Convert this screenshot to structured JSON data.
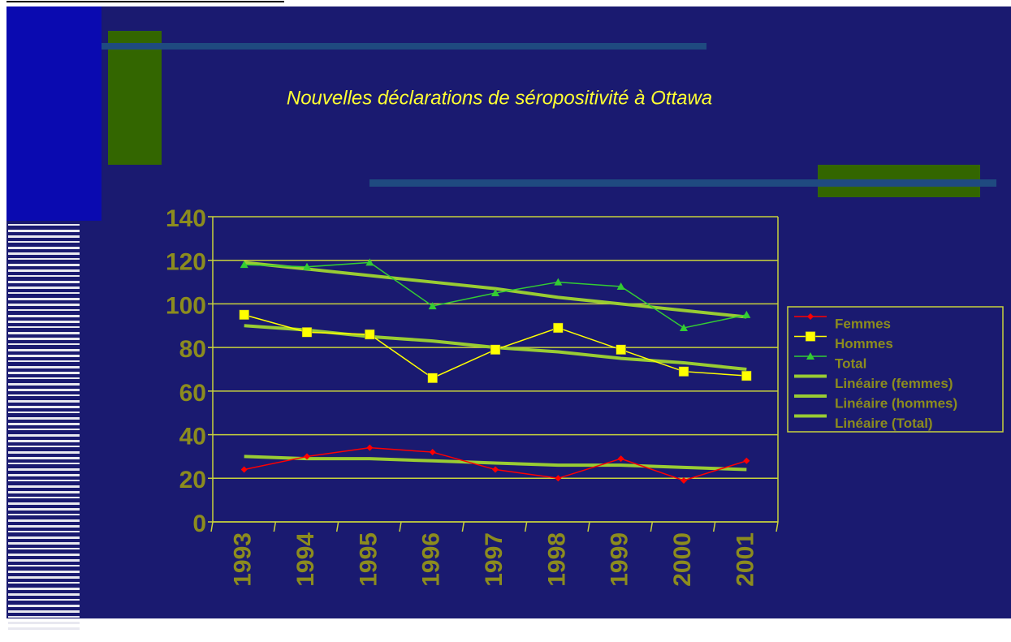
{
  "chart_data": {
    "type": "line",
    "title": "Nouvelles déclarations de séropositivité à Ottawa",
    "categories": [
      "1993",
      "1994",
      "1995",
      "1996",
      "1997",
      "1998",
      "1999",
      "2000",
      "2001"
    ],
    "series": [
      {
        "name": "Femmes",
        "color": "#ff0000",
        "marker": "diamond",
        "values": [
          24,
          30,
          34,
          32,
          24,
          20,
          29,
          19,
          28
        ]
      },
      {
        "name": "Hommes",
        "color": "#ffff00",
        "marker": "square",
        "values": [
          95,
          87,
          86,
          66,
          79,
          89,
          79,
          69,
          67
        ]
      },
      {
        "name": "Total",
        "color": "#33cc33",
        "marker": "triangle",
        "values": [
          118,
          117,
          119,
          99,
          105,
          110,
          108,
          89,
          95
        ]
      },
      {
        "name": "Linéaire (femmes)",
        "color": "#99cc33",
        "values": [
          30,
          29,
          29,
          28,
          27,
          26,
          26,
          25,
          24
        ]
      },
      {
        "name": "Linéaire (hommes)",
        "color": "#99cc33",
        "values": [
          90,
          88,
          85,
          83,
          80,
          78,
          75,
          73,
          70
        ]
      },
      {
        "name": "Linéaire (Total)",
        "color": "#99cc33",
        "values": [
          119,
          116,
          113,
          110,
          107,
          103,
          100,
          97,
          94
        ]
      }
    ],
    "ylim": [
      0,
      140
    ],
    "yticks": [
      0,
      20,
      40,
      60,
      80,
      100,
      120,
      140
    ],
    "grid": true,
    "legend": "right"
  }
}
